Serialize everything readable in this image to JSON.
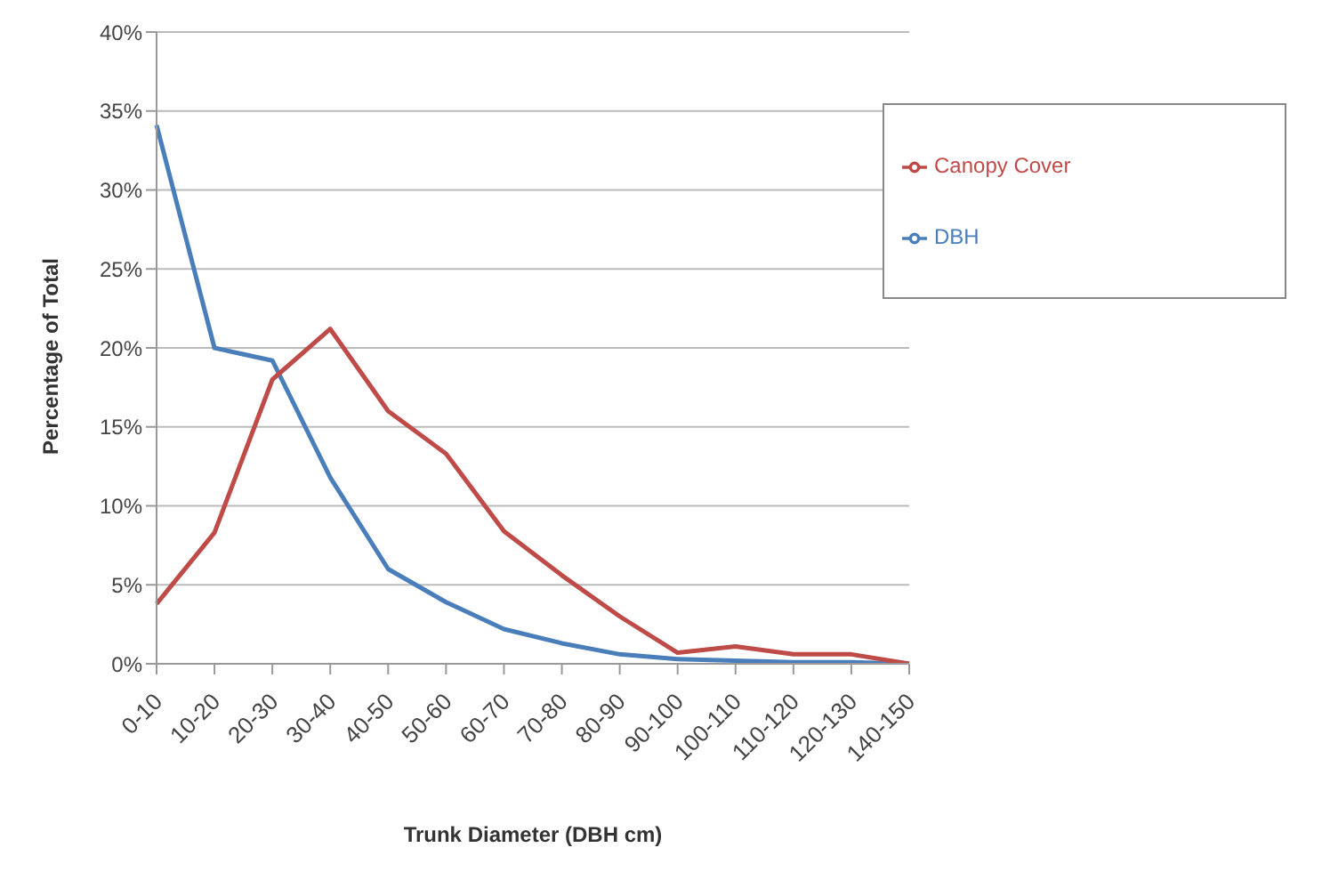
{
  "chart_data": {
    "type": "line",
    "xlabel": "Trunk Diameter (DBH cm)",
    "ylabel": "Percentage of Total",
    "categories": [
      "0-10",
      "10-20",
      "20-30",
      "30-40",
      "40-50",
      "50-60",
      "60-70",
      "70-80",
      "80-90",
      "90-100",
      "100-110",
      "110-120",
      "120-130",
      "140-150"
    ],
    "series": [
      {
        "name": "DBH",
        "color": "#4a7ebb",
        "values": [
          34.1,
          20.0,
          19.2,
          11.8,
          6.0,
          3.9,
          2.2,
          1.3,
          0.6,
          0.3,
          0.2,
          0.1,
          0.1,
          0.0
        ]
      },
      {
        "name": "Canopy Cover",
        "color": "#be4b48",
        "values": [
          3.8,
          8.3,
          18.0,
          21.2,
          16.0,
          13.3,
          8.4,
          5.6,
          3.0,
          0.7,
          1.1,
          0.6,
          0.6,
          0.0
        ]
      }
    ],
    "ylim": [
      0,
      40
    ],
    "yticks": [
      {
        "value": 0,
        "label": "0%"
      },
      {
        "value": 5,
        "label": "5%"
      },
      {
        "value": 10,
        "label": "10%"
      },
      {
        "value": 15,
        "label": "15%"
      },
      {
        "value": 20,
        "label": "20%"
      },
      {
        "value": 25,
        "label": "25%"
      },
      {
        "value": 30,
        "label": "30%"
      },
      {
        "value": 35,
        "label": "35%"
      },
      {
        "value": 40,
        "label": "40%"
      }
    ],
    "grid": "y",
    "legend": "top right",
    "marker": "none",
    "line_style": "solid"
  }
}
